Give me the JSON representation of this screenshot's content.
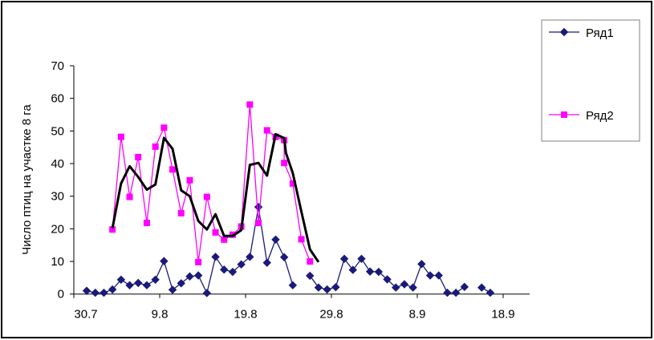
{
  "chart_data": {
    "type": "line",
    "title": "",
    "xlabel": "",
    "ylabel": "Число птиц на участке 8 га",
    "ylim": [
      0,
      70
    ],
    "yticks": [
      0,
      10,
      20,
      30,
      40,
      50,
      60,
      70
    ],
    "x_unit": "days since 30.7",
    "xticks": [
      {
        "x": 0,
        "label": "30.7"
      },
      {
        "x": 10,
        "label": "9.8"
      },
      {
        "x": 20,
        "label": "19.8"
      },
      {
        "x": 30,
        "label": "29.8"
      },
      {
        "x": 40,
        "label": "8.9"
      },
      {
        "x": 50,
        "label": "18.9"
      }
    ],
    "legend": {
      "placement": "right",
      "entries": [
        "Ряд1",
        "Ряд2"
      ]
    },
    "series": [
      {
        "name": "Ряд1",
        "color": "#1a1a7a",
        "marker": "diamond",
        "points": [
          [
            1,
            1.0
          ],
          [
            2,
            0.4
          ],
          [
            3,
            0.4
          ],
          [
            4,
            1.4
          ],
          [
            5,
            4.4
          ],
          [
            6,
            2.7
          ],
          [
            7,
            3.4
          ],
          [
            8,
            2.7
          ],
          [
            9,
            4.4
          ],
          [
            10,
            10.1
          ],
          [
            11,
            1.3
          ],
          [
            12,
            3.3
          ],
          [
            13,
            5.4
          ],
          [
            14,
            5.7
          ],
          [
            15,
            0.3
          ],
          [
            16,
            11.4
          ],
          [
            17,
            7.5
          ],
          [
            18,
            6.8
          ],
          [
            19,
            9.1
          ],
          [
            20,
            11.4
          ],
          [
            21,
            26.7
          ],
          [
            22,
            9.6
          ],
          [
            23,
            16.7
          ],
          [
            24,
            11.3
          ],
          [
            25,
            2.7
          ],
          null,
          [
            27,
            5.6
          ],
          [
            28,
            2.0
          ],
          [
            29,
            1.4
          ],
          [
            30,
            2.1
          ],
          [
            31,
            10.8
          ],
          [
            32,
            7.4
          ],
          [
            33,
            10.8
          ],
          [
            34,
            6.9
          ],
          [
            35,
            6.8
          ],
          [
            36,
            4.5
          ],
          [
            37,
            2.0
          ],
          [
            38,
            3.0
          ],
          [
            39,
            2.0
          ],
          [
            40,
            9.2
          ],
          [
            41,
            5.7
          ],
          [
            42,
            5.7
          ],
          [
            43,
            0.4
          ],
          [
            44,
            0.4
          ],
          [
            45,
            2.2
          ],
          null,
          [
            47,
            2.0
          ],
          [
            48,
            0.4
          ]
        ]
      },
      {
        "name": "Ряд2",
        "color": "#ff00ff",
        "marker": "square",
        "points": [
          [
            4,
            19.8
          ],
          [
            5,
            48.2
          ],
          [
            6,
            29.8
          ],
          [
            7,
            42.0
          ],
          [
            8,
            21.8
          ],
          [
            9,
            45.2
          ],
          [
            10,
            51.0
          ],
          [
            11,
            38.2
          ],
          [
            12,
            24.8
          ],
          [
            13,
            34.9
          ],
          [
            14,
            9.8
          ],
          [
            15,
            29.8
          ],
          [
            16,
            18.9
          ],
          [
            17,
            16.7
          ],
          [
            18,
            18.2
          ],
          [
            19,
            20.7
          ],
          [
            20,
            58.1
          ],
          [
            21,
            21.8
          ],
          [
            22,
            50.2
          ],
          [
            23,
            48.2
          ],
          [
            24,
            47.2
          ],
          [
            24,
            40.2
          ],
          [
            25,
            33.9
          ],
          [
            26,
            16.8
          ],
          [
            27,
            10.0
          ]
        ]
      },
      {
        "name": "",
        "color": "#000000",
        "marker": "none",
        "points": [
          [
            4,
            20.2
          ],
          [
            5,
            33.9
          ],
          [
            6,
            39.2
          ],
          [
            7,
            35.9
          ],
          [
            8,
            32.0
          ],
          [
            9,
            33.6
          ],
          [
            10,
            47.9
          ],
          [
            11,
            44.5
          ],
          [
            12,
            31.8
          ],
          [
            13,
            30.0
          ],
          [
            14,
            22.4
          ],
          [
            15,
            19.8
          ],
          [
            16,
            24.5
          ],
          [
            17,
            17.8
          ],
          [
            18,
            17.8
          ],
          [
            19,
            19.6
          ],
          [
            20,
            39.6
          ],
          [
            21,
            40.2
          ],
          [
            22,
            36.3
          ],
          [
            23,
            49.0
          ],
          [
            24,
            47.8
          ],
          [
            24.2,
            43.3
          ],
          [
            25,
            37.1
          ],
          [
            26,
            25.3
          ],
          [
            27,
            13.7
          ],
          [
            28,
            9.8
          ]
        ]
      }
    ]
  }
}
